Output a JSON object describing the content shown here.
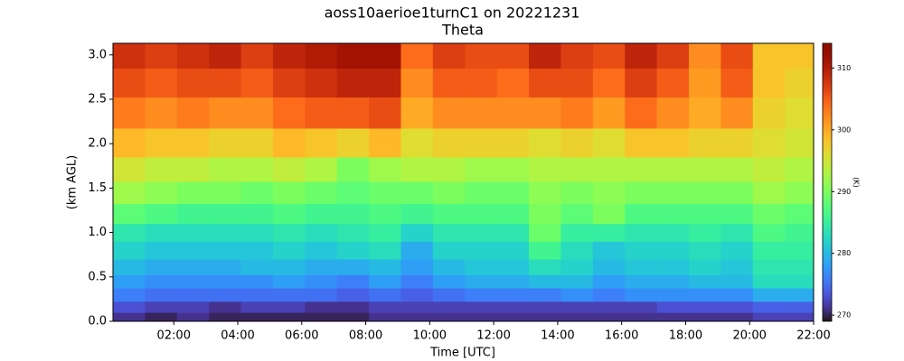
{
  "chart_data": {
    "type": "heatmap",
    "title": "aoss10aerioe1turnC1 on 20221231",
    "subtitle": "Theta",
    "xlabel": "Time [UTC]",
    "ylabel": "(km AGL)",
    "colorbar_label": "(K)",
    "colormap": "turbo",
    "xlim": [
      0.1,
      22
    ],
    "xticks": [
      {
        "value": 2,
        "label": "02:00"
      },
      {
        "value": 4,
        "label": "04:00"
      },
      {
        "value": 6,
        "label": "06:00"
      },
      {
        "value": 8,
        "label": "08:00"
      },
      {
        "value": 10,
        "label": "10:00"
      },
      {
        "value": 12,
        "label": "12:00"
      },
      {
        "value": 14,
        "label": "14:00"
      },
      {
        "value": 16,
        "label": "16:00"
      },
      {
        "value": 18,
        "label": "18:00"
      },
      {
        "value": 20,
        "label": "20:00"
      },
      {
        "value": 22,
        "label": "22:00"
      }
    ],
    "ylim": [
      0,
      3.13
    ],
    "yticks": [
      {
        "value": 0,
        "label": "0.0"
      },
      0.5,
      {
        "value": 1,
        "label": "1.0"
      },
      1.5,
      {
        "value": 2,
        "label": "2.0"
      },
      2.5,
      {
        "value": 3,
        "label": "3.0"
      }
    ],
    "zlim": [
      269,
      314
    ],
    "zticks": [
      270,
      280,
      290,
      300,
      310
    ],
    "x": [
      0.6,
      1.6,
      2.6,
      3.6,
      4.6,
      5.6,
      6.6,
      7.6,
      8.6,
      9.6,
      10.6,
      11.6,
      12.6,
      13.6,
      14.6,
      15.6,
      16.6,
      17.6,
      18.6,
      19.6,
      20.6,
      21.6
    ],
    "y": [
      0.05,
      0.15,
      0.3,
      0.45,
      0.6,
      0.8,
      1.0,
      1.2,
      1.45,
      1.7,
      2.0,
      2.35,
      2.7,
      3.0
    ],
    "z": [
      [
        271,
        270,
        271,
        270,
        270,
        270,
        270,
        270,
        271,
        271,
        271,
        271,
        271,
        271,
        271,
        271,
        271,
        271,
        271,
        271,
        272,
        272
      ],
      [
        273,
        272,
        272,
        271,
        272,
        272,
        271,
        271,
        272,
        272,
        272,
        272,
        272,
        272,
        272,
        272,
        272,
        273,
        273,
        273,
        274,
        274
      ],
      [
        276,
        275,
        275,
        275,
        275,
        275,
        275,
        274,
        275,
        274,
        275,
        276,
        276,
        276,
        277,
        276,
        277,
        277,
        277,
        277,
        279,
        279
      ],
      [
        278,
        277,
        277,
        277,
        277,
        278,
        277,
        276,
        278,
        276,
        278,
        279,
        279,
        280,
        280,
        278,
        279,
        279,
        280,
        280,
        283,
        283
      ],
      [
        280,
        279,
        279,
        279,
        280,
        280,
        279,
        279,
        280,
        278,
        280,
        281,
        281,
        283,
        282,
        280,
        281,
        281,
        282,
        281,
        284,
        284
      ],
      [
        282,
        281,
        281,
        281,
        281,
        282,
        281,
        282,
        283,
        279,
        282,
        282,
        282,
        286,
        283,
        281,
        282,
        282,
        283,
        282,
        285,
        285
      ],
      [
        284,
        283,
        283,
        283,
        283,
        284,
        283,
        284,
        285,
        282,
        284,
        284,
        284,
        289,
        285,
        285,
        284,
        284,
        285,
        284,
        287,
        286
      ],
      [
        288,
        287,
        286,
        286,
        286,
        287,
        286,
        286,
        287,
        286,
        287,
        287,
        287,
        290,
        288,
        290,
        287,
        287,
        287,
        287,
        289,
        288
      ],
      [
        292,
        291,
        290,
        290,
        289,
        290,
        289,
        288,
        289,
        289,
        290,
        289,
        289,
        291,
        290,
        291,
        290,
        290,
        290,
        290,
        292,
        291
      ],
      [
        295,
        294,
        294,
        293,
        293,
        294,
        293,
        290,
        292,
        293,
        293,
        292,
        292,
        293,
        293,
        293,
        293,
        293,
        293,
        293,
        294,
        293
      ],
      [
        299,
        298,
        298,
        297,
        297,
        299,
        298,
        297,
        299,
        296,
        297,
        297,
        297,
        296,
        297,
        296,
        298,
        298,
        297,
        297,
        296,
        295
      ],
      [
        303,
        302,
        303,
        302,
        302,
        304,
        305,
        305,
        306,
        300,
        302,
        302,
        302,
        302,
        303,
        301,
        304,
        302,
        300,
        302,
        297,
        296
      ],
      [
        306,
        305,
        306,
        306,
        305,
        307,
        308,
        309,
        309,
        302,
        305,
        305,
        304,
        306,
        306,
        304,
        307,
        305,
        301,
        305,
        298,
        297
      ],
      [
        308,
        307,
        308,
        309,
        307,
        309,
        310,
        311,
        311,
        304,
        307,
        306,
        306,
        309,
        307,
        306,
        309,
        307,
        302,
        306,
        298,
        298
      ]
    ]
  }
}
